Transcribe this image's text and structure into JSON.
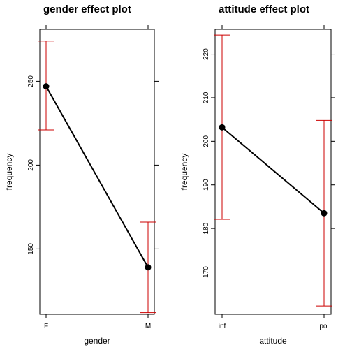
{
  "chart_data": [
    {
      "type": "line",
      "title": "gender effect plot",
      "xlabel": "gender",
      "ylabel": "frequency",
      "categories": [
        "F",
        "M"
      ],
      "ylim": [
        111,
        281
      ],
      "yticks": [
        150,
        200,
        250
      ],
      "series": [
        {
          "values": [
            247,
            139
          ],
          "lower": [
            221,
            112
          ],
          "upper": [
            274,
            166
          ],
          "color": "#000000",
          "ci_color": "#cc0000"
        }
      ]
    },
    {
      "type": "line",
      "title": "attitude effect plot",
      "xlabel": "attitude",
      "ylabel": "frequency",
      "categories": [
        "inf",
        "pol"
      ],
      "ylim": [
        160.3,
        225.7
      ],
      "yticks": [
        170,
        180,
        190,
        200,
        210,
        220
      ],
      "series": [
        {
          "values": [
            203.2,
            183.5
          ],
          "lower": [
            182.1,
            162.2
          ],
          "upper": [
            224.4,
            204.8
          ],
          "color": "#000000",
          "ci_color": "#cc0000"
        }
      ]
    }
  ]
}
